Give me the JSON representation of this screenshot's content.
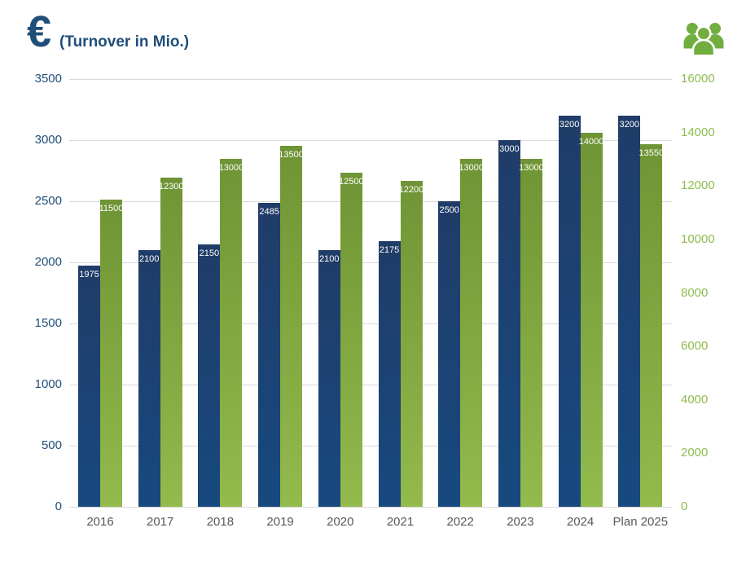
{
  "header": {
    "currency_symbol": "€",
    "title": "(Turnover in Mio.)",
    "title_color": "#1F4E79",
    "people_icon_color": "#72AE3F"
  },
  "chart_data": {
    "type": "bar",
    "title": "€ (Turnover in Mio.)",
    "categories": [
      "2016",
      "2017",
      "2018",
      "2019",
      "2020",
      "2021",
      "2022",
      "2023",
      "2024",
      "Plan 2025"
    ],
    "series": [
      {
        "id": "turnover-mio-eur",
        "axis": "left",
        "values": [
          1975,
          2100,
          2150,
          2485,
          2100,
          2175,
          2500,
          3000,
          3200,
          3200
        ],
        "bar_color_top": "#203C68",
        "bar_color_bottom": "#17497F",
        "label_color": "#FFFFFF"
      },
      {
        "id": "headcount",
        "axis": "right",
        "values": [
          11500,
          12300,
          13000,
          13500,
          12500,
          12200,
          13000,
          13000,
          14000,
          13550
        ],
        "bar_color_top": "#6F9435",
        "bar_color_bottom": "#92BA4C",
        "label_color": "#FFFFFF"
      }
    ],
    "left_axis": {
      "min": 0,
      "max": 3500,
      "step": 500,
      "tick_labels": [
        "0",
        "500",
        "1000",
        "1500",
        "2000",
        "2500",
        "3000",
        "3500"
      ],
      "color": "#1F4E79"
    },
    "right_axis": {
      "min": 0,
      "max": 16000,
      "step": 2000,
      "tick_labels": [
        "0",
        "2000",
        "4000",
        "6000",
        "8000",
        "10000",
        "12000",
        "14000",
        "16000"
      ],
      "color": "#8FBC4F"
    },
    "x_axis": {
      "color": "#595959"
    },
    "gridline_color": "#D9D9D9",
    "grid": true,
    "legend_position": "none",
    "data_labels": "inside-end"
  }
}
